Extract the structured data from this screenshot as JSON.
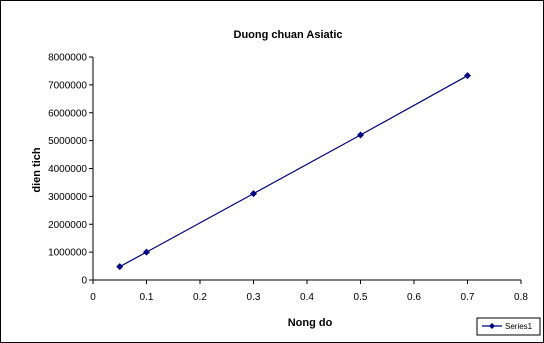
{
  "colors": {
    "series": "#000080",
    "axis": "#000000",
    "background": "#ffffff"
  },
  "chart_data": {
    "type": "scatter",
    "title": "Duong chuan Asiatic",
    "xlabel": "Nong do",
    "ylabel": "dien tich",
    "xlim": [
      0,
      0.8
    ],
    "ylim": [
      0,
      8000000
    ],
    "x_ticks": [
      0,
      0.1,
      0.2,
      0.3,
      0.4,
      0.5,
      0.6,
      0.7,
      0.8
    ],
    "y_ticks": [
      0,
      1000000,
      2000000,
      3000000,
      4000000,
      5000000,
      6000000,
      7000000,
      8000000
    ],
    "grid": false,
    "legend_position": "bottom-right",
    "marker": "diamond",
    "lines": true,
    "series": [
      {
        "name": "Series1",
        "x": [
          0.05,
          0.1,
          0.3,
          0.5,
          0.7
        ],
        "y": [
          480000,
          1000000,
          3100000,
          5200000,
          7330000
        ]
      }
    ]
  }
}
